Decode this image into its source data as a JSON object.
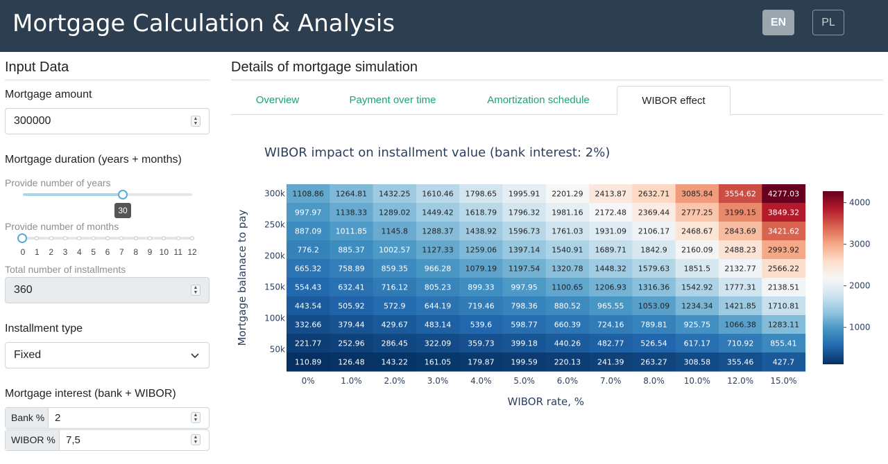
{
  "header": {
    "title": "Mortgage Calculation & Analysis",
    "lang_en": "EN",
    "lang_pl": "PL"
  },
  "sidebar": {
    "title": "Input Data",
    "amount_label": "Mortgage amount",
    "amount_value": "300000",
    "duration_label": "Mortgage duration (years + months)",
    "years_label": "Provide number of years",
    "years_value": "30",
    "months_label": "Provide number of months",
    "months_ticks": [
      "0",
      "1",
      "2",
      "3",
      "4",
      "5",
      "6",
      "7",
      "8",
      "9",
      "10",
      "11",
      "12"
    ],
    "months_value": 0,
    "total_label": "Total number of installments",
    "total_value": "360",
    "type_label": "Installment type",
    "type_value": "Fixed",
    "interest_label": "Mortgage interest (bank + WIBOR)",
    "bank_label": "Bank %",
    "bank_value": "2",
    "wibor_label": "WIBOR %",
    "wibor_value": "7,5"
  },
  "main": {
    "title": "Details of mortgage simulation",
    "tabs": [
      "Overview",
      "Payment over time",
      "Amortization schedule",
      "WIBOR effect"
    ],
    "active_tab": "WIBOR effect"
  },
  "chart_data": {
    "type": "heatmap",
    "title": "WIBOR impact on installment value (bank interest: 2%)",
    "xlabel": "WIBOR rate, %",
    "ylabel": "Mortgage balanace to pay",
    "x": [
      "0%",
      "1.0%",
      "2.0%",
      "3.0%",
      "4.0%",
      "5.0%",
      "6.0%",
      "7.0%",
      "8.0%",
      "10.0%",
      "12.0%",
      "15.0%"
    ],
    "y_ticks": [
      "50k",
      "100k",
      "150k",
      "200k",
      "250k",
      "300k"
    ],
    "colorbar_ticks": [
      "1000",
      "2000",
      "3000",
      "4000"
    ],
    "colorscale": "RdBu_r",
    "zrange": [
      110.89,
      4277.03
    ],
    "rows": [
      [
        "1108.86",
        "1264.81",
        "1432.25",
        "1610.46",
        "1798.65",
        "1995.91",
        "2201.29",
        "2413.87",
        "2632.71",
        "3085.84",
        "3554.62",
        "4277.03"
      ],
      [
        "997.97",
        "1138.33",
        "1289.02",
        "1449.42",
        "1618.79",
        "1796.32",
        "1981.16",
        "2172.48",
        "2369.44",
        "2777.25",
        "3199.15",
        "3849.32"
      ],
      [
        "887.09",
        "1011.85",
        "1145.8",
        "1288.37",
        "1438.92",
        "1596.73",
        "1761.03",
        "1931.09",
        "2106.17",
        "2468.67",
        "2843.69",
        "3421.62"
      ],
      [
        "776.2",
        "885.37",
        "1002.57",
        "1127.33",
        "1259.06",
        "1397.14",
        "1540.91",
        "1689.71",
        "1842.9",
        "2160.09",
        "2488.23",
        "2993.92"
      ],
      [
        "665.32",
        "758.89",
        "859.35",
        "966.28",
        "1079.19",
        "1197.54",
        "1320.78",
        "1448.32",
        "1579.63",
        "1851.5",
        "2132.77",
        "2566.22"
      ],
      [
        "554.43",
        "632.41",
        "716.12",
        "805.23",
        "899.33",
        "997.95",
        "1100.65",
        "1206.93",
        "1316.36",
        "1542.92",
        "1777.31",
        "2138.51"
      ],
      [
        "443.54",
        "505.92",
        "572.9",
        "644.19",
        "719.46",
        "798.36",
        "880.52",
        "965.55",
        "1053.09",
        "1234.34",
        "1421.85",
        "1710.81"
      ],
      [
        "332.66",
        "379.44",
        "429.67",
        "483.14",
        "539.6",
        "598.77",
        "660.39",
        "724.16",
        "789.81",
        "925.75",
        "1066.38",
        "1283.11"
      ],
      [
        "221.77",
        "252.96",
        "286.45",
        "322.09",
        "359.73",
        "399.18",
        "440.26",
        "482.77",
        "526.54",
        "617.17",
        "710.92",
        "855.41"
      ],
      [
        "110.89",
        "126.48",
        "143.22",
        "161.05",
        "179.87",
        "199.59",
        "220.13",
        "241.39",
        "263.27",
        "308.58",
        "355.46",
        "427.7"
      ]
    ]
  }
}
